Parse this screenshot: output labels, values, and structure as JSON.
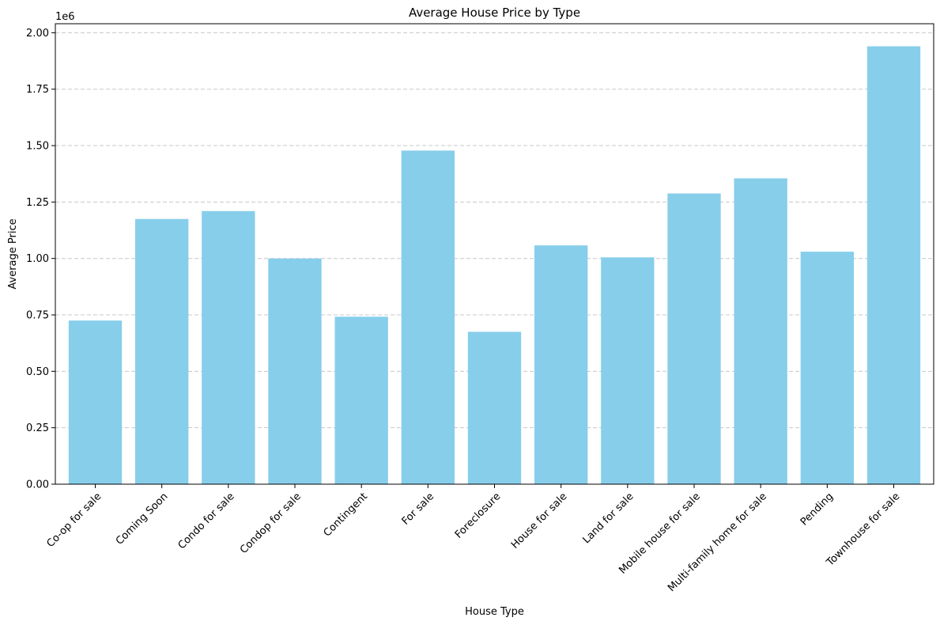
{
  "chart_data": {
    "type": "bar",
    "title": "Average House Price by Type",
    "xlabel": "House Type",
    "ylabel": "Average Price",
    "y_offset_label": "1e6",
    "categories": [
      "Co-op for sale",
      "Coming Soon",
      "Condo for sale",
      "Condop for sale",
      "Contingent",
      "For sale",
      "Foreclosure",
      "House for sale",
      "Land for sale",
      "Mobile house for sale",
      "Multi-family home for sale",
      "Pending",
      "Townhouse for sale"
    ],
    "values": [
      725000,
      1175000,
      1210000,
      1000000,
      742000,
      1478000,
      675000,
      1058000,
      1005000,
      1288000,
      1355000,
      1030000,
      1940000
    ],
    "ylim": [
      0,
      2040000
    ],
    "yticks": [
      0,
      250000,
      500000,
      750000,
      1000000,
      1250000,
      1500000,
      1750000,
      2000000
    ],
    "ytick_labels": [
      "0.00",
      "0.25",
      "0.50",
      "0.75",
      "1.00",
      "1.25",
      "1.50",
      "1.75",
      "2.00"
    ],
    "x_tick_rotation_deg": 45,
    "grid": {
      "axis": "y",
      "style": "dashed"
    },
    "bar_color": "#87CEEB"
  }
}
